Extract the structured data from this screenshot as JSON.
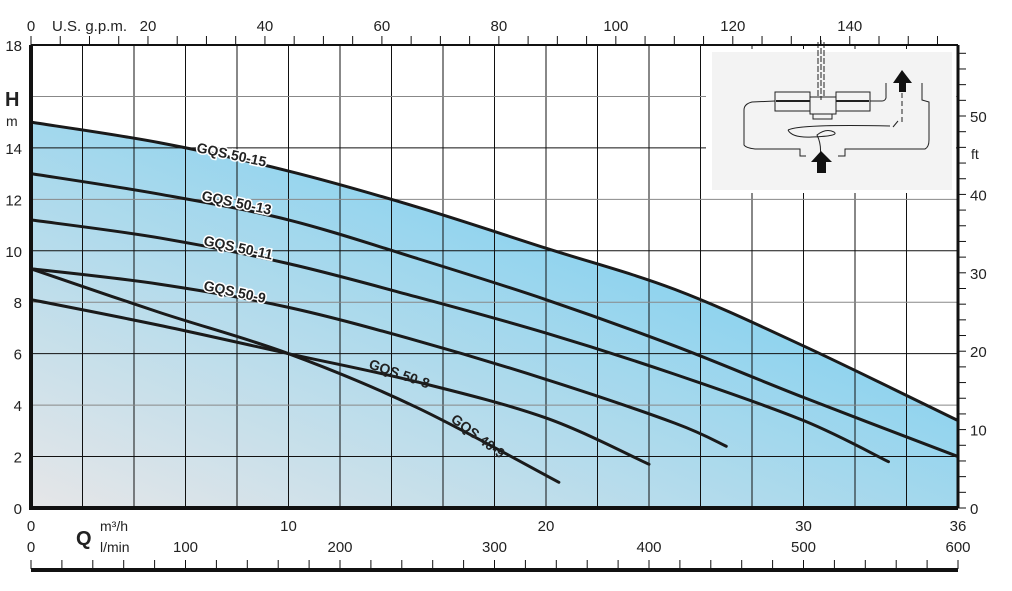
{
  "chart_data": {
    "type": "line",
    "title": "",
    "x_primary": {
      "unit": "m³/h",
      "range": [
        0,
        36
      ],
      "ticks": [
        0,
        10,
        20,
        30,
        36
      ]
    },
    "x_secondary_bottom": {
      "unit": "l/min",
      "range": [
        0,
        600
      ],
      "ticks": [
        0,
        100,
        200,
        300,
        400,
        500,
        600
      ]
    },
    "x_secondary_top": {
      "unit": "U.S. g.p.m.",
      "ticks": [
        0,
        20,
        40,
        60,
        80,
        100,
        120,
        140
      ]
    },
    "y_primary": {
      "label": "H",
      "unit": "m",
      "range": [
        0,
        18
      ],
      "ticks": [
        0,
        2,
        4,
        6,
        8,
        10,
        12,
        14,
        18
      ]
    },
    "y_secondary": {
      "unit": "ft",
      "ticks": [
        0,
        10,
        20,
        30,
        40,
        50
      ]
    },
    "xlabel": "Q",
    "grid": true,
    "fill_colors": {
      "low": "#e6e6e8",
      "high": "#5ec9f2"
    },
    "line_color": "#1a1a1a",
    "series": [
      {
        "name": "GQS 50-15",
        "x": [
          0,
          5,
          10,
          15,
          20,
          25,
          30,
          36
        ],
        "y": [
          15,
          14.2,
          13.1,
          11.7,
          10.1,
          8.5,
          6.3,
          3.4
        ]
      },
      {
        "name": "GQS 50-13",
        "x": [
          0,
          5,
          10,
          15,
          20,
          25,
          30,
          36
        ],
        "y": [
          13,
          12.2,
          11.2,
          9.7,
          8.1,
          6.3,
          4.3,
          2.0
        ]
      },
      {
        "name": "GQS 50-11",
        "x": [
          0,
          5,
          10,
          15,
          20,
          25,
          30,
          33.3
        ],
        "y": [
          11.2,
          10.5,
          9.5,
          8.2,
          6.8,
          5.2,
          3.4,
          1.8
        ]
      },
      {
        "name": "GQS 50-9",
        "x": [
          0,
          5,
          10,
          15,
          20,
          25,
          27
        ],
        "y": [
          9.3,
          8.7,
          7.8,
          6.5,
          5.0,
          3.3,
          2.4
        ]
      },
      {
        "name": "GQS 50-8",
        "x": [
          0,
          5,
          10,
          15,
          20,
          24
        ],
        "y": [
          8.1,
          7.1,
          6.0,
          4.9,
          3.5,
          1.7
        ]
      },
      {
        "name": "GQS 40-9",
        "x": [
          0,
          5,
          10,
          15,
          20.5
        ],
        "y": [
          9.3,
          7.6,
          6.0,
          3.9,
          1.0
        ]
      }
    ]
  }
}
